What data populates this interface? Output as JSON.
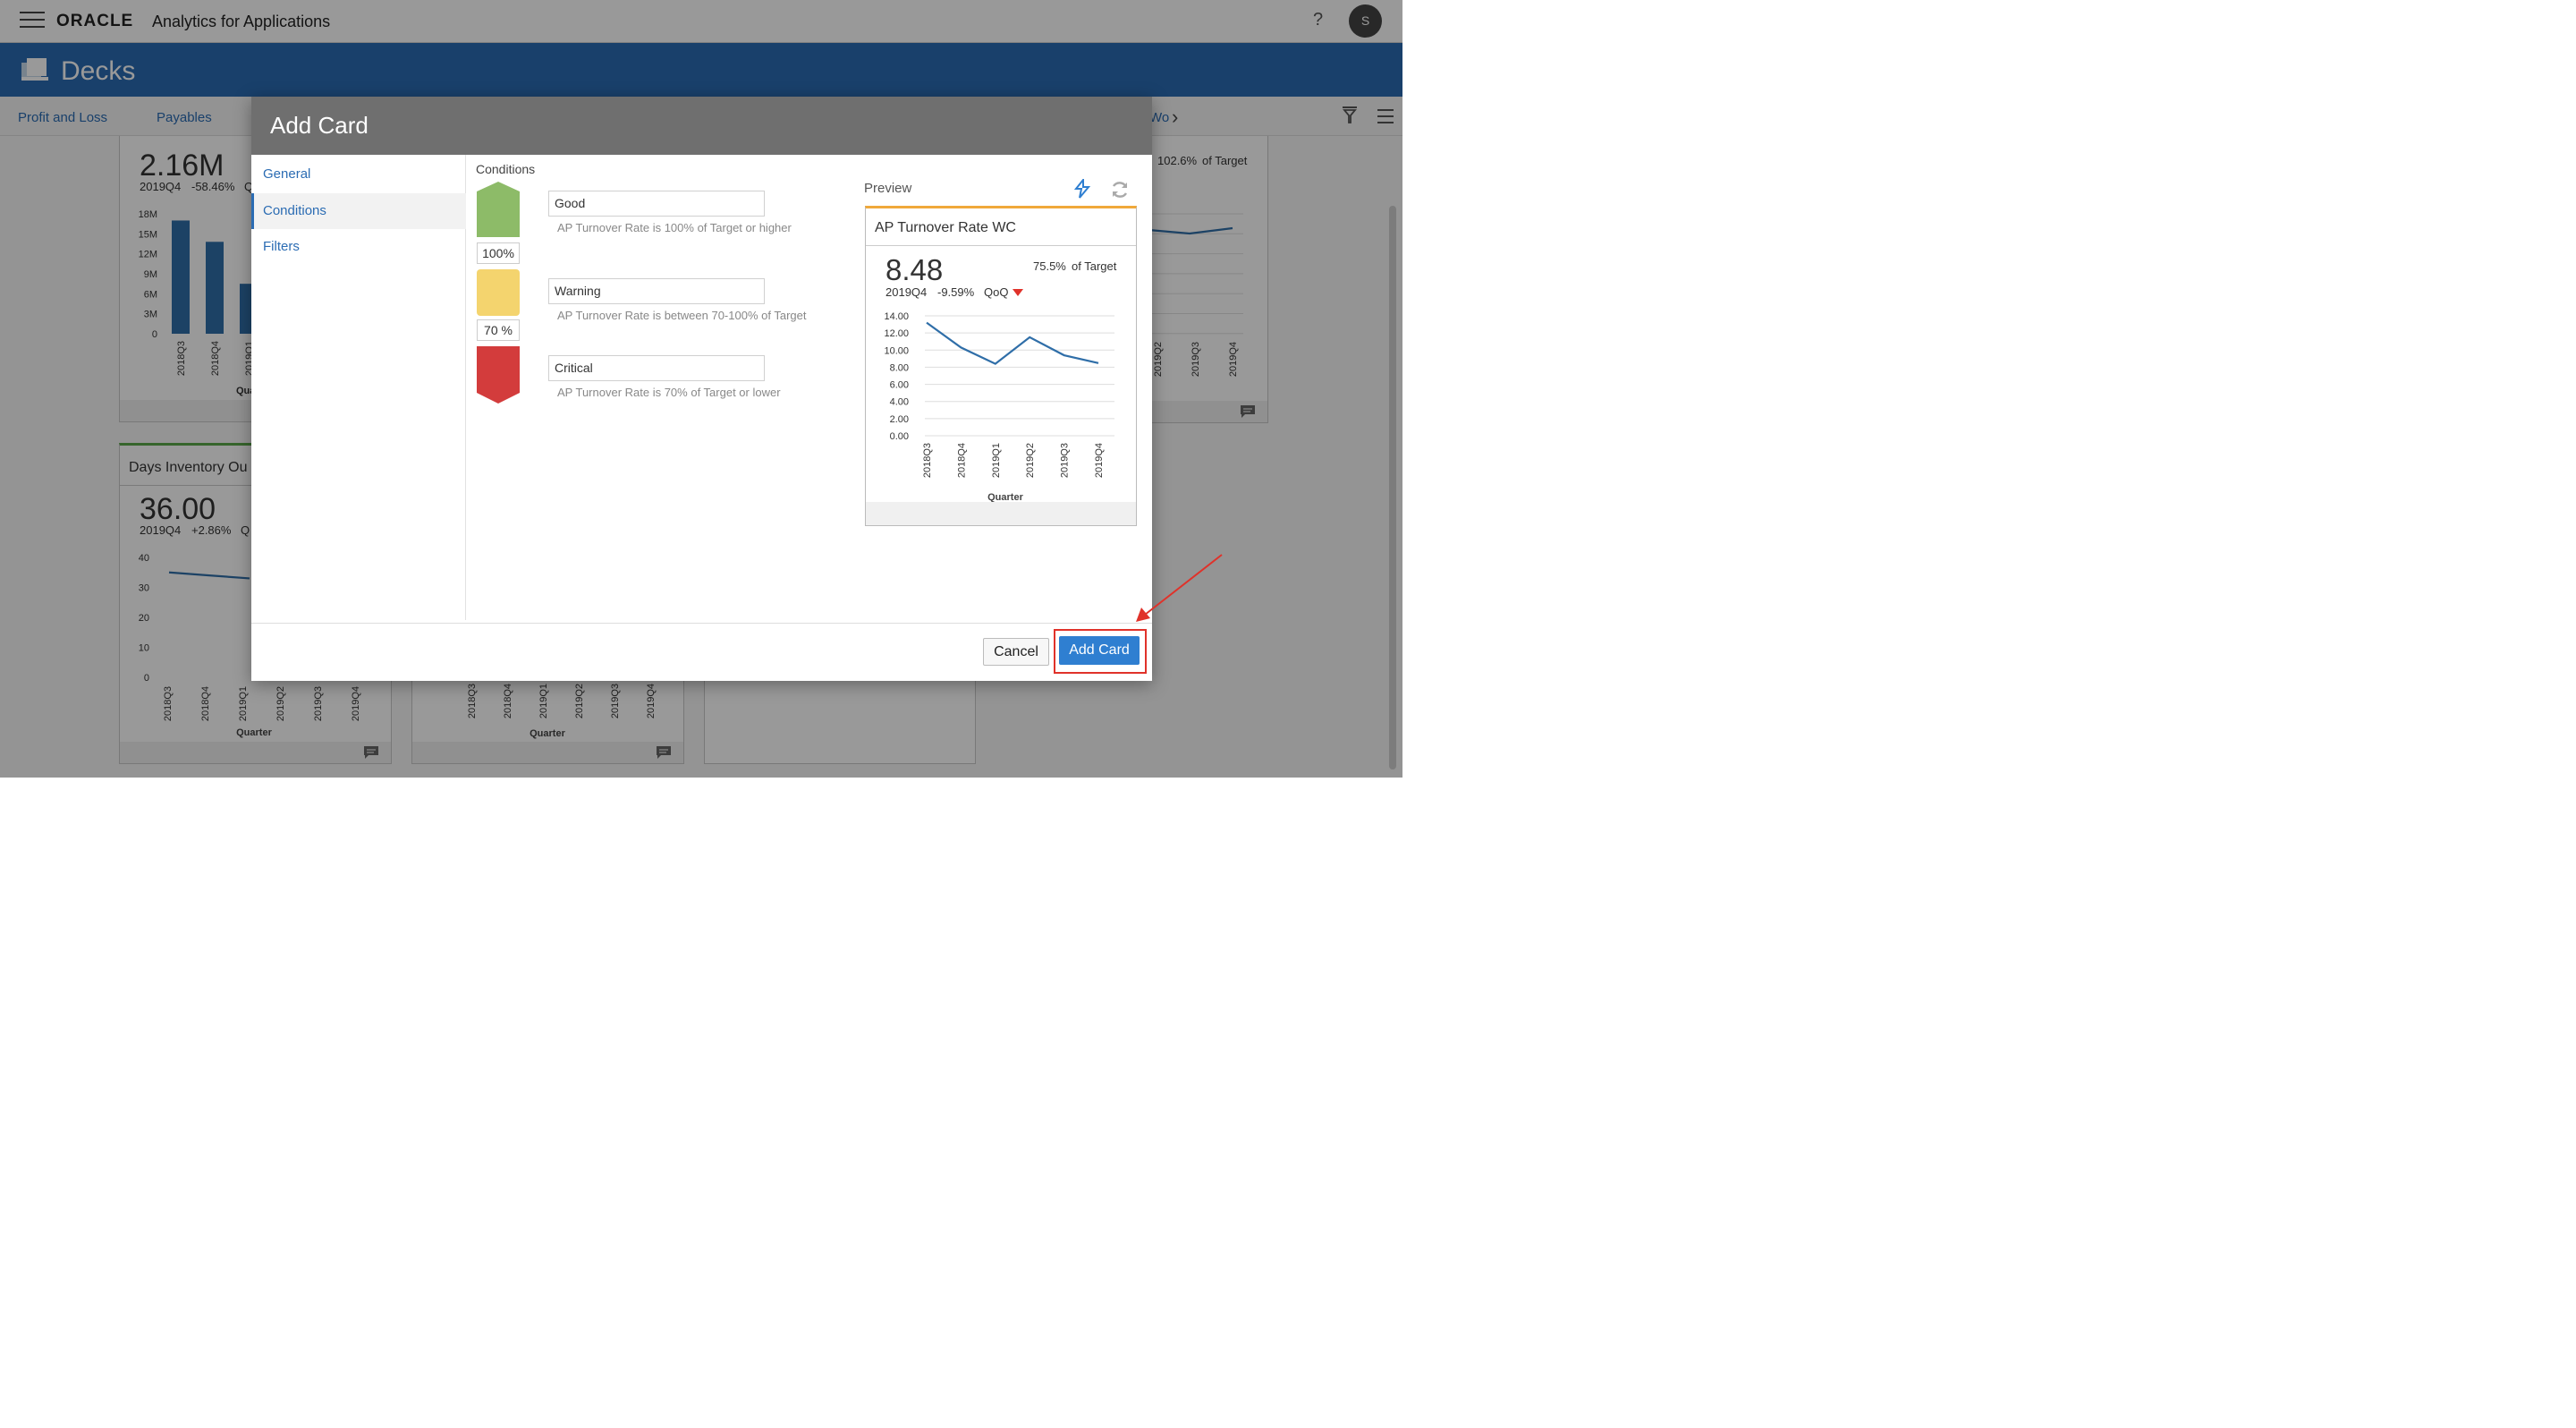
{
  "header": {
    "brand": "ORACLE",
    "app_title": "Analytics for Applications",
    "help_label": "?",
    "avatar_initial": "S"
  },
  "decks": {
    "title": "Decks"
  },
  "tabs": {
    "items": [
      {
        "label": "Profit and Loss"
      },
      {
        "label": "Payables"
      }
    ],
    "right_partial": "Wo"
  },
  "background_cards": {
    "card1": {
      "big_value": "2.16M",
      "period": "2019Q4",
      "change": "-58.46%",
      "change_suffix": "Q",
      "y_ticks": [
        "18M",
        "15M",
        "12M",
        "9M",
        "6M",
        "3M",
        "0"
      ],
      "x_ticks": [
        "2018Q3",
        "2018Q4",
        "2019Q1"
      ],
      "x_axis_partial": "Qua"
    },
    "card2": {
      "title": "Days Inventory Ou",
      "big_value": "36.00",
      "period": "2019Q4",
      "change": "+2.86%",
      "change_suffix": "Q",
      "y_ticks": [
        "40",
        "30",
        "20",
        "10",
        "0"
      ],
      "x_ticks": [
        "2018Q3",
        "2018Q4",
        "2019Q1",
        "2019Q2",
        "2019Q3",
        "2019Q4"
      ],
      "x_axis": "Quarter"
    },
    "card3": {
      "x_ticks": [
        "2018Q3",
        "2018Q4",
        "2019Q1",
        "2019Q2",
        "2019Q3",
        "2019Q4"
      ],
      "x_axis": "Quarter"
    },
    "card4": {
      "target_pct": "102.6%",
      "target_label": "of Target",
      "x_ticks": [
        "2019Q2",
        "2019Q3",
        "2019Q4"
      ]
    }
  },
  "dialog": {
    "title": "Add Card",
    "nav": [
      {
        "label": "General"
      },
      {
        "label": "Conditions"
      },
      {
        "label": "Filters"
      }
    ],
    "conditions_label": "Conditions",
    "conditions": [
      {
        "name": "Good",
        "description": "AP Turnover Rate is 100% of Target or higher",
        "color": "#8dbb68"
      },
      {
        "name": "Warning",
        "description": "AP Turnover Rate is between 70-100% of Target",
        "color": "#f4d46e"
      },
      {
        "name": "Critical",
        "description": "AP Turnover Rate is 70% of Target or lower",
        "color": "#d33c3c"
      }
    ],
    "thresholds": [
      "100%",
      "70 %"
    ],
    "preview": {
      "label": "Preview",
      "card_title": "AP Turnover Rate WC",
      "value": "8.48",
      "target_pct": "75.5%",
      "target_label": "of Target",
      "period": "2019Q4",
      "change": "-9.59%",
      "change_unit": "QoQ",
      "accent_color": "#f0a83a"
    },
    "buttons": {
      "cancel": "Cancel",
      "add": "Add Card"
    }
  },
  "chart_data": [
    {
      "type": "line",
      "x": [
        "2018Q3",
        "2018Q4",
        "2019Q1",
        "2019Q2",
        "2019Q3",
        "2019Q4"
      ],
      "series": [
        {
          "values": [
            13.2,
            10.3,
            8.4,
            11.5,
            9.4,
            8.48
          ]
        }
      ],
      "xlabel": "Quarter",
      "ylabel": "",
      "ylim": [
        0,
        14
      ],
      "y_ticks": [
        "14.00",
        "12.00",
        "10.00",
        "8.00",
        "6.00",
        "4.00",
        "2.00",
        "0.00"
      ],
      "grid": true,
      "color": "#2f6ea8"
    },
    {
      "type": "bar",
      "categories": [
        "2018Q3",
        "2018Q4",
        "2019Q1"
      ],
      "values": [
        17,
        13.8,
        7.5
      ],
      "ylim": [
        0,
        18
      ],
      "color": "#2f6ea8"
    },
    {
      "type": "line",
      "x": [
        "2018Q3",
        "2018Q4",
        "2019Q1"
      ],
      "series": [
        {
          "values": [
            35,
            34,
            33
          ]
        }
      ],
      "ylim": [
        0,
        40
      ],
      "color": "#2f6ea8"
    }
  ]
}
